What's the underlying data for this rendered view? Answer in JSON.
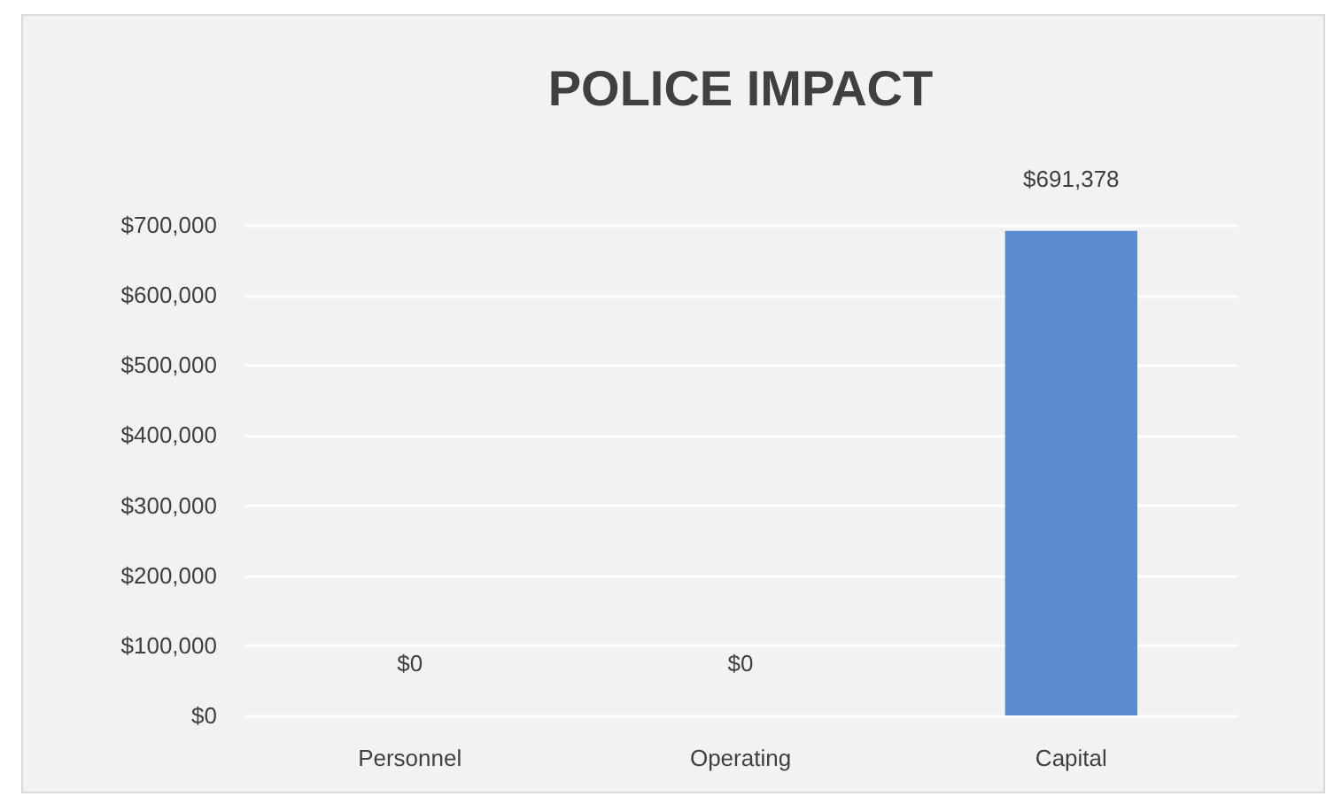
{
  "chart_data": {
    "type": "bar",
    "title": "POLICE IMPACT",
    "categories": [
      "Personnel",
      "Operating",
      "Capital"
    ],
    "values": [
      0,
      0,
      691378
    ],
    "value_labels": [
      "$0",
      "$0",
      "$691,378"
    ],
    "color": "#5b8bd0",
    "ylim": [
      0,
      700000
    ],
    "yticks": [
      {
        "value": 0,
        "label": "$0"
      },
      {
        "value": 100000,
        "label": "$100,000"
      },
      {
        "value": 200000,
        "label": "$200,000"
      },
      {
        "value": 300000,
        "label": "$300,000"
      },
      {
        "value": 400000,
        "label": "$400,000"
      },
      {
        "value": 500000,
        "label": "$500,000"
      },
      {
        "value": 600000,
        "label": "$600,000"
      },
      {
        "value": 700000,
        "label": "$700,000"
      }
    ],
    "grid": true
  }
}
